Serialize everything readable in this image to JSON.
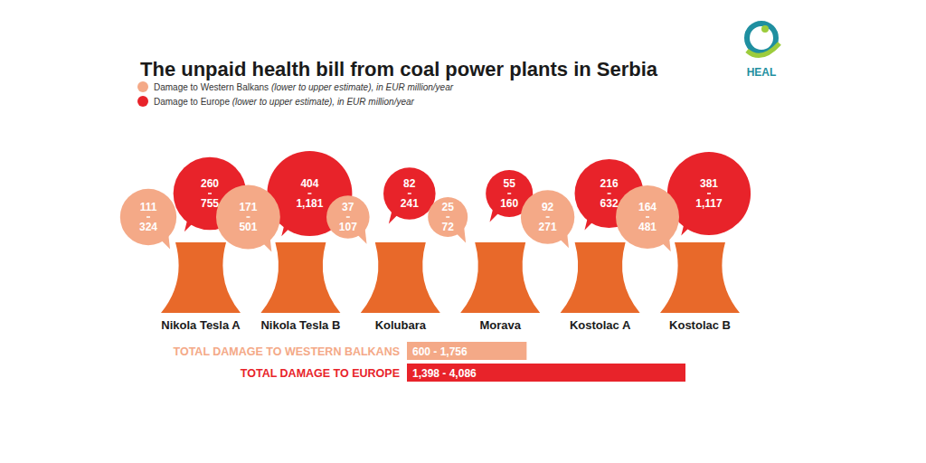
{
  "chart_data": {
    "type": "bubble",
    "title": "The unpaid health bill from coal power plants in Serbia",
    "logo": "HEAL",
    "data_labels": true,
    "categories": [
      "Nikola Tesla A",
      "Nikola Tesla B",
      "Kolubara",
      "Morava",
      "Kostolac A",
      "Kostolac B"
    ],
    "series": [
      {
        "name": "Damage to Western Balkans (lower to upper estimate), in EUR million/year",
        "color": "#f4a987",
        "low": [
          111,
          171,
          37,
          25,
          92,
          164
        ],
        "high": [
          324,
          501,
          107,
          72,
          271,
          481
        ],
        "high_labels": [
          "324",
          "501",
          "107",
          "72",
          "271",
          "481"
        ]
      },
      {
        "name": "Damage to Europe (lower to upper estimate), in EUR million/year",
        "color": "#e8232a",
        "low": [
          260,
          404,
          82,
          55,
          216,
          381
        ],
        "high": [
          755,
          1181,
          241,
          160,
          632,
          1117
        ],
        "high_labels": [
          "755",
          "1,181",
          "241",
          "160",
          "632",
          "1,117"
        ]
      }
    ],
    "totals": [
      {
        "label": "TOTAL DAMAGE TO WESTERN BALKANS",
        "low": 600,
        "high": 1756,
        "value_label": "600 - 1,756",
        "color": "#f4a987"
      },
      {
        "label": "TOTAL DAMAGE TO EUROPE",
        "low": 1398,
        "high": 4086,
        "value_label": "1,398 - 4,086",
        "color": "#e8232a"
      }
    ]
  }
}
